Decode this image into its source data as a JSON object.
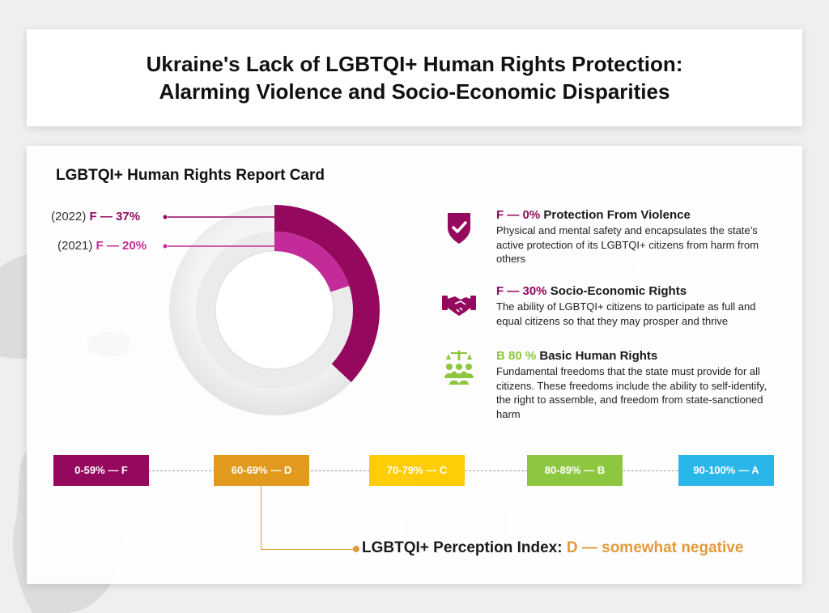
{
  "title": {
    "line1": "Ukraine's Lack of LGBTQI+ Human Rights Protection:",
    "line2": "Alarming Violence and Socio-Economic Disparities"
  },
  "report_card": {
    "title": "LGBTQI+ Human Rights Report Card",
    "labels": [
      {
        "year": "(2022)",
        "grade": "F — 37%"
      },
      {
        "year": "(2021)",
        "grade": "F — 20%"
      }
    ]
  },
  "items": [
    {
      "grade": "F — 0%",
      "title": "Protection From Violence",
      "desc": "Physical and mental safety and encapsulates the state’s active protection of its LGBTQI+ citizens from harm from others",
      "icon": "shield-check-icon",
      "color": "#94085e"
    },
    {
      "grade": "F — 30%",
      "title": "Socio-Economic Rights",
      "desc": "The ability of LGBTQI+ citizens to participate as full and equal citizens so that they may prosper and thrive",
      "icon": "handshake-icon",
      "color": "#94085e"
    },
    {
      "grade": "B 80 %",
      "title": "Basic Human Rights",
      "desc": "Fundamental freedoms that the state must provide for all citizens. These freedoms include the ability to self-identify, the right to assemble, and freedom from state-sanctioned harm",
      "icon": "scales-people-icon",
      "color": "#8dc63f"
    }
  ],
  "scale": [
    {
      "label": "0-59% — F",
      "color": "#94085e"
    },
    {
      "label": "60-69% — D",
      "color": "#e29a1e"
    },
    {
      "label": "70-79% — C",
      "color": "#ffcd05"
    },
    {
      "label": "80-89% — B",
      "color": "#8dc63f"
    },
    {
      "label": "90-100% — A",
      "color": "#29b6e8"
    }
  ],
  "perception": {
    "label": "LGBTQI+ Perception Index:",
    "value": "D — somewhat negative"
  },
  "chart_data": {
    "type": "donut",
    "title": "LGBTQI+ Human Rights Report Card",
    "series": [
      {
        "name": "(2022)",
        "value": 37,
        "grade": "F",
        "color": "#94085e"
      },
      {
        "name": "(2021)",
        "value": 20,
        "grade": "F",
        "color": "#c32c98"
      }
    ],
    "max": 100,
    "categories": [
      {
        "label": "Protection From Violence",
        "grade": "F",
        "value": 0
      },
      {
        "label": "Socio-Economic Rights",
        "grade": "F",
        "value": 30
      },
      {
        "label": "Basic Human Rights",
        "grade": "B",
        "value": 80
      }
    ]
  }
}
